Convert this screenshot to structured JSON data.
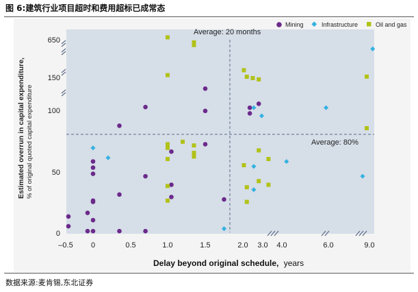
{
  "figure": {
    "caption": "图 6:建筑行业项目超时和费用超标已成常态",
    "source": "数据来源:麦肯锡,东北证券"
  },
  "chart_data": {
    "type": "scatter",
    "xlabel": "Delay beyond original schedule,",
    "xlabel_unit": "years",
    "ylabel": "Estimated overrun in capital expenditure,",
    "ylabel_sub": "% of original quoted capital expenditure",
    "x_ticks": [
      "–0.5",
      "0",
      "0.5",
      "1.0",
      "1.5",
      "2.0",
      "3.0",
      "4.0",
      "6.0",
      "9.0"
    ],
    "y_ticks": [
      "0",
      "50",
      "100",
      "150",
      "650"
    ],
    "grid": false,
    "legend_position": "top-right",
    "colors": {
      "Mining": "#6b2a8a",
      "Infrastructure": "#35b2e0",
      "Oil and gas": "#b1c219",
      "plot_bg": "#d6dee8",
      "ref_line": "#5b6a86"
    },
    "reference_lines": [
      {
        "axis": "x",
        "value": 1.8,
        "label": "Average: 20 months"
      },
      {
        "axis": "y",
        "value": 80,
        "label": "Average: 80%"
      }
    ],
    "series": [
      {
        "name": "Mining",
        "marker": "circle",
        "points": [
          [
            -0.45,
            5
          ],
          [
            -0.45,
            13
          ],
          [
            -0.1,
            1
          ],
          [
            -0.1,
            16
          ],
          [
            0,
            10
          ],
          [
            0,
            25
          ],
          [
            0,
            26
          ],
          [
            0,
            48
          ],
          [
            0,
            53
          ],
          [
            0,
            58
          ],
          [
            0,
            1
          ],
          [
            0.35,
            87
          ],
          [
            0.35,
            31
          ],
          [
            0.35,
            1
          ],
          [
            0.7,
            104
          ],
          [
            0.7,
            46
          ],
          [
            0.7,
            1
          ],
          [
            1.05,
            66
          ],
          [
            1.05,
            39
          ],
          [
            1.05,
            29
          ],
          [
            1.5,
            132
          ],
          [
            1.5,
            99
          ],
          [
            1.5,
            72
          ],
          [
            1.75,
            27
          ],
          [
            2.35,
            103
          ],
          [
            2.35,
            97
          ],
          [
            2.8,
            109
          ]
        ]
      },
      {
        "name": "Infrastructure",
        "marker": "diamond",
        "points": [
          [
            0,
            69
          ],
          [
            0.2,
            61
          ],
          [
            1.75,
            3
          ],
          [
            2.55,
            103
          ],
          [
            2.55,
            54
          ],
          [
            2.55,
            35
          ],
          [
            2.95,
            95
          ],
          [
            4.2,
            58
          ],
          [
            5.9,
            103
          ],
          [
            8.5,
            46
          ],
          [
            9.4,
            500
          ]
        ]
      },
      {
        "name": "Oil and gas",
        "marker": "square",
        "points": [
          [
            1.0,
            700
          ],
          [
            1.0,
            160
          ],
          [
            1.0,
            72
          ],
          [
            1.0,
            69
          ],
          [
            1.0,
            60
          ],
          [
            1.0,
            38
          ],
          [
            1.0,
            26
          ],
          [
            1.2,
            74
          ],
          [
            1.35,
            600
          ],
          [
            1.35,
            559
          ],
          [
            1.35,
            71
          ],
          [
            1.35,
            65
          ],
          [
            1.35,
            62
          ],
          [
            2.05,
            190
          ],
          [
            2.05,
            55
          ],
          [
            2.2,
            150
          ],
          [
            2.2,
            37
          ],
          [
            2.2,
            25
          ],
          [
            2.5,
            148
          ],
          [
            2.8,
            146
          ],
          [
            2.8,
            67
          ],
          [
            2.8,
            42
          ],
          [
            3.3,
            60
          ],
          [
            3.3,
            39
          ],
          [
            8.8,
            151
          ],
          [
            8.8,
            85
          ]
        ]
      }
    ]
  }
}
